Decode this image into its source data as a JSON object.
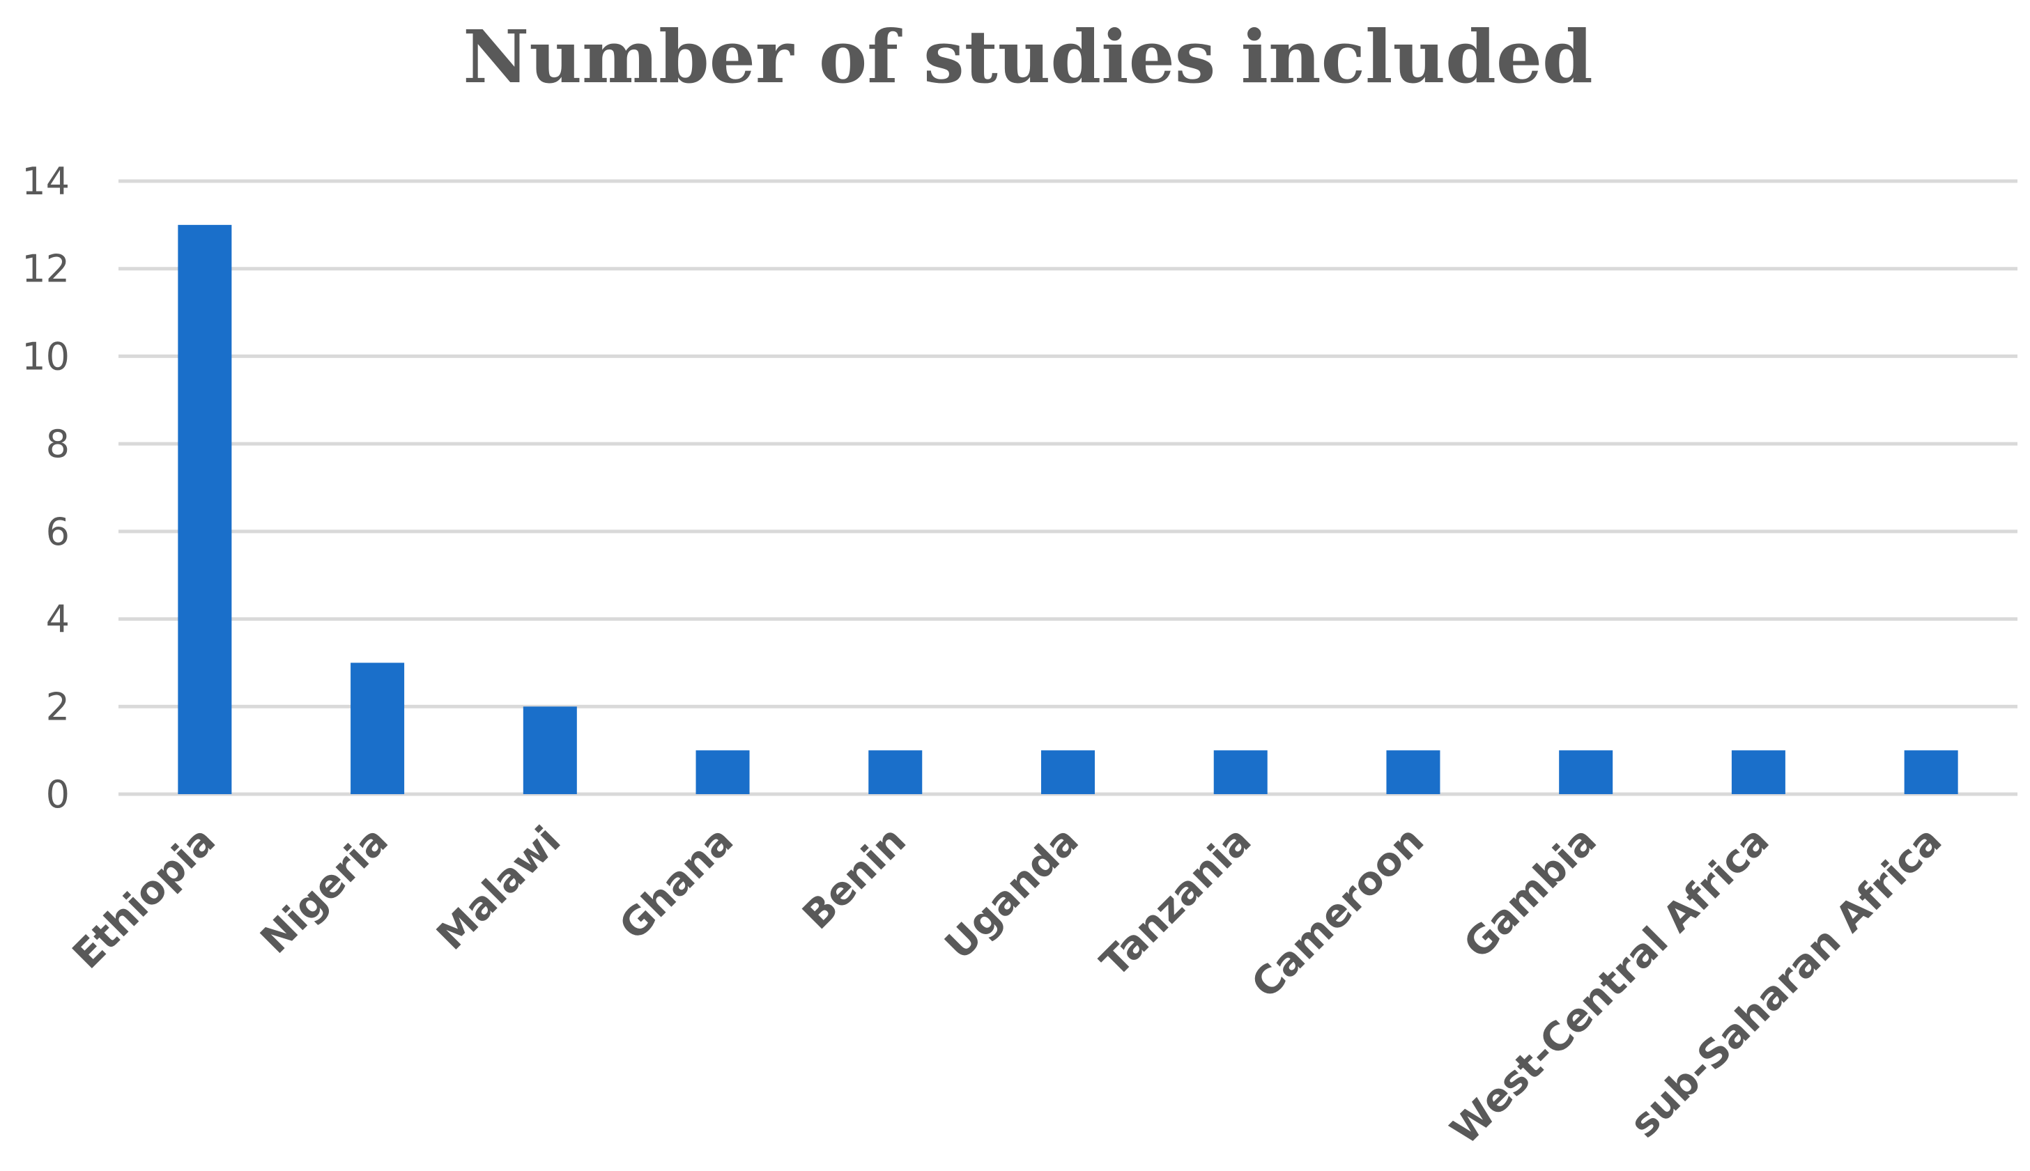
{
  "chart_data": {
    "type": "bar",
    "title": "Number of studies included",
    "xlabel": "",
    "ylabel": "",
    "categories": [
      "Ethiopia",
      "Nigeria",
      "Malawi",
      "Ghana",
      "Benin",
      "Uganda",
      "Tanzania",
      "Cameroon",
      "Gambia",
      "West-Central Africa",
      "sub-Saharan Africa"
    ],
    "values": [
      13,
      3,
      2,
      1,
      1,
      1,
      1,
      1,
      1,
      1,
      1
    ],
    "ylim": [
      0,
      14
    ],
    "yticks": [
      "0",
      "2",
      "4",
      "6",
      "8",
      "10",
      "12",
      "14"
    ],
    "grid": true,
    "legend": "none",
    "bar_color": "#1a6fca",
    "gridline_color": "#d9d9d9",
    "text_color": "#595959"
  }
}
